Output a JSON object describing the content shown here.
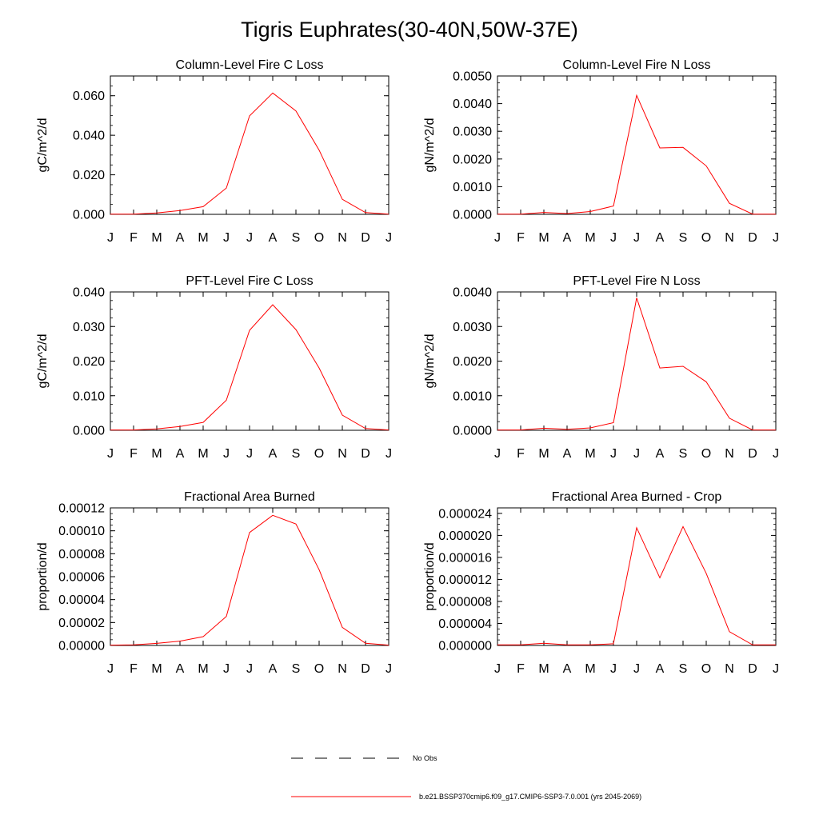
{
  "title": "Tigris Euphrates(30-40N,50W-37E)",
  "legend": {
    "items": [
      {
        "label": "No Obs",
        "style": "dashed",
        "color": "#000000"
      },
      {
        "label": "b.e21.BSSP370cmip6.f09_g17.CMIP6-SSP3-7.0.001 (yrs 2045-2069)",
        "style": "solid",
        "color": "#ff0000"
      }
    ]
  },
  "colors": {
    "series": "#ff0000",
    "axis": "#000000"
  },
  "chart_data": [
    {
      "type": "line",
      "title": "Column-Level Fire C Loss",
      "ylabel": "gC/m^2/d",
      "categories": [
        "J",
        "F",
        "M",
        "A",
        "M",
        "J",
        "J",
        "A",
        "S",
        "O",
        "N",
        "D",
        "J"
      ],
      "ylim": [
        0,
        0.07
      ],
      "yticks": [
        "0.000",
        "0.020",
        "0.040",
        "0.060"
      ],
      "ytick_values": [
        0,
        0.02,
        0.04,
        0.06
      ],
      "yminor_step": 0.005,
      "series": [
        {
          "values": [
            0.0001,
            0.0001,
            0.0007,
            0.0019,
            0.0039,
            0.0133,
            0.0498,
            0.0614,
            0.0523,
            0.0325,
            0.0076,
            0.0009,
            0.0001
          ]
        }
      ]
    },
    {
      "type": "line",
      "title": "Column-Level Fire N Loss",
      "ylabel": "gN/m^2/d",
      "categories": [
        "J",
        "F",
        "M",
        "A",
        "M",
        "J",
        "J",
        "A",
        "S",
        "O",
        "N",
        "D",
        "J"
      ],
      "ylim": [
        0,
        0.005
      ],
      "yticks": [
        "0.0000",
        "0.0010",
        "0.0020",
        "0.0030",
        "0.0040",
        "0.0050"
      ],
      "ytick_values": [
        0,
        0.001,
        0.002,
        0.003,
        0.004,
        0.005
      ],
      "yminor_step": 0.00025,
      "series": [
        {
          "values": [
            1e-05,
            1e-05,
            7e-05,
            3e-05,
            0.0001,
            0.0003,
            0.0043,
            0.0024,
            0.00242,
            0.00175,
            0.0004,
            1e-05,
            1e-05
          ]
        }
      ]
    },
    {
      "type": "line",
      "title": "PFT-Level Fire C Loss",
      "ylabel": "gC/m^2/d",
      "categories": [
        "J",
        "F",
        "M",
        "A",
        "M",
        "J",
        "J",
        "A",
        "S",
        "O",
        "N",
        "D",
        "J"
      ],
      "ylim": [
        0,
        0.04
      ],
      "yticks": [
        "0.000",
        "0.010",
        "0.020",
        "0.030",
        "0.040"
      ],
      "ytick_values": [
        0,
        0.01,
        0.02,
        0.03,
        0.04
      ],
      "yminor_step": 0.0025,
      "series": [
        {
          "values": [
            0.0001,
            0.0001,
            0.0004,
            0.0011,
            0.0023,
            0.0087,
            0.0289,
            0.0363,
            0.0291,
            0.018,
            0.0044,
            0.0005,
            0.0001
          ]
        }
      ]
    },
    {
      "type": "line",
      "title": "PFT-Level Fire N Loss",
      "ylabel": "gN/m^2/d",
      "categories": [
        "J",
        "F",
        "M",
        "A",
        "M",
        "J",
        "J",
        "A",
        "S",
        "O",
        "N",
        "D",
        "J"
      ],
      "ylim": [
        0,
        0.004
      ],
      "yticks": [
        "0.0000",
        "0.0010",
        "0.0020",
        "0.0030",
        "0.0040"
      ],
      "ytick_values": [
        0,
        0.001,
        0.002,
        0.003,
        0.004
      ],
      "yminor_step": 0.00025,
      "series": [
        {
          "values": [
            1e-05,
            1e-05,
            6e-05,
            3e-05,
            7e-05,
            0.00022,
            0.00383,
            0.0018,
            0.00185,
            0.0014,
            0.00035,
            1e-05,
            1e-05
          ]
        }
      ]
    },
    {
      "type": "line",
      "title": "Fractional Area Burned",
      "ylabel": "proportion/d",
      "categories": [
        "J",
        "F",
        "M",
        "A",
        "M",
        "J",
        "J",
        "A",
        "S",
        "O",
        "N",
        "D",
        "J"
      ],
      "ylim": [
        0,
        0.00012
      ],
      "yticks": [
        "0.00000",
        "0.00002",
        "0.00004",
        "0.00006",
        "0.00008",
        "0.00010",
        "0.00012"
      ],
      "ytick_values": [
        0,
        2e-05,
        4e-05,
        6e-05,
        8e-05,
        0.0001,
        0.00012
      ],
      "yminor_step": 5e-06,
      "series": [
        {
          "values": [
            3e-07,
            5e-07,
            1.8e-06,
            3.8e-06,
            7.7e-06,
            2.53e-05,
            9.85e-05,
            0.0001135,
            0.000106,
            6.61e-05,
            1.58e-05,
            1.9e-06,
            3e-07
          ]
        }
      ]
    },
    {
      "type": "line",
      "title": "Fractional Area Burned - Crop",
      "ylabel": "proportion/d",
      "categories": [
        "J",
        "F",
        "M",
        "A",
        "M",
        "J",
        "J",
        "A",
        "S",
        "O",
        "N",
        "D",
        "J"
      ],
      "ylim": [
        0,
        2.5e-05
      ],
      "yticks": [
        "0.000000",
        "0.000004",
        "0.000008",
        "0.000012",
        "0.000016",
        "0.000020",
        "0.000024"
      ],
      "ytick_values": [
        0,
        4e-06,
        8e-06,
        1.2e-05,
        1.6e-05,
        2e-05,
        2.4e-05
      ],
      "yminor_step": 1e-06,
      "series": [
        {
          "values": [
            1e-07,
            1e-07,
            4e-07,
            1e-07,
            1e-07,
            3e-07,
            2.14e-05,
            1.23e-05,
            2.16e-05,
            1.31e-05,
            2.5e-06,
            1e-07,
            1e-07
          ]
        }
      ]
    }
  ]
}
